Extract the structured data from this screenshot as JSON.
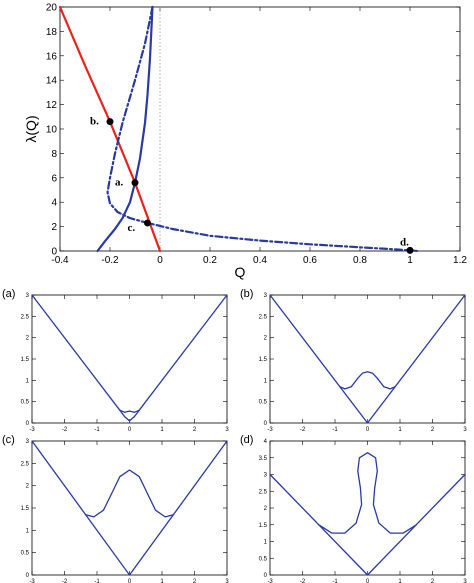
{
  "chart_data": [
    {
      "type": "line",
      "xlabel": "Q",
      "ylabel": "λ(Q)",
      "xlim": [
        -0.4,
        1.2
      ],
      "ylim": [
        0,
        20
      ],
      "xticks": [
        "-0.4",
        "-0.2",
        "0",
        "0.2",
        "0.4",
        "0.6",
        "0.8",
        "1",
        "1.2"
      ],
      "yticks": [
        "0",
        "2",
        "4",
        "6",
        "8",
        "10",
        "12",
        "14",
        "16",
        "18",
        "20"
      ],
      "series": [
        {
          "style": "solid",
          "color": "#e8231e",
          "x": [
            -0.4,
            -0.3,
            -0.2,
            -0.1,
            0.0
          ],
          "y": [
            20.0,
            15.2,
            10.6,
            5.6,
            0.0
          ]
        },
        {
          "style": "solid",
          "color": "#2b3aa0",
          "x": [
            -0.25,
            -0.22,
            -0.18,
            -0.15,
            -0.12,
            -0.1,
            -0.08,
            -0.06,
            -0.05,
            -0.04,
            -0.03
          ],
          "y": [
            0.0,
            0.8,
            1.8,
            2.7,
            4.0,
            5.6,
            7.6,
            10.5,
            12.8,
            15.8,
            20.0
          ]
        },
        {
          "style": "dashdot",
          "color": "#2b3aa0",
          "x": [
            -0.03,
            -0.06,
            -0.1,
            -0.15,
            -0.18,
            -0.2,
            -0.21,
            -0.2,
            -0.17,
            -0.12,
            -0.05,
            0.05,
            0.2,
            0.4,
            0.6,
            0.8,
            0.95,
            1.0,
            1.03
          ],
          "y": [
            20.0,
            17.0,
            14.0,
            10.5,
            8.0,
            6.0,
            4.8,
            3.9,
            3.2,
            2.7,
            2.3,
            1.8,
            1.25,
            0.85,
            0.55,
            0.3,
            0.12,
            0.05,
            0.0
          ]
        }
      ],
      "points": [
        {
          "label": "a.",
          "x": -0.1,
          "y": 5.6
        },
        {
          "label": "b.",
          "x": -0.2,
          "y": 10.6
        },
        {
          "label": "c.",
          "x": -0.05,
          "y": 2.3
        },
        {
          "label": "d.",
          "x": 1.0,
          "y": 0.05
        }
      ]
    },
    {
      "type": "line",
      "panel": "(a)",
      "xlim": [
        -3,
        3
      ],
      "ylim": [
        0,
        3
      ],
      "xticks": [
        "-3",
        "-2",
        "-1",
        "0",
        "1",
        "2",
        "3"
      ],
      "yticks": [
        "0",
        "0.5",
        "1",
        "1.5",
        "2",
        "2.5",
        "3"
      ],
      "series": [
        {
          "color": "#2b3aa0",
          "x": [
            -3,
            -0.45,
            -0.3,
            -0.15,
            0,
            0.15,
            0.3,
            0.45,
            3
          ],
          "y": [
            3,
            0.45,
            0.3,
            0.25,
            0.28,
            0.25,
            0.3,
            0.45,
            3
          ]
        },
        {
          "color": "#2b3aa0",
          "x": [
            -0.3,
            -0.15,
            0,
            0.15,
            0.3
          ],
          "y": [
            0.3,
            0.15,
            0.05,
            0.15,
            0.3
          ]
        }
      ]
    },
    {
      "type": "line",
      "panel": "(b)",
      "xlim": [
        -3,
        3
      ],
      "ylim": [
        0,
        3
      ],
      "xticks": [
        "-3",
        "-2",
        "-1",
        "0",
        "1",
        "2",
        "3"
      ],
      "yticks": [
        "0",
        "0.5",
        "1",
        "1.5",
        "2",
        "2.5",
        "3"
      ],
      "series": [
        {
          "color": "#2b3aa0",
          "x": [
            -3,
            0,
            3
          ],
          "y": [
            3,
            0,
            3
          ]
        },
        {
          "color": "#2b3aa0",
          "x": [
            -0.85,
            -0.7,
            -0.5,
            -0.3,
            -0.15,
            0,
            0.15,
            0.3,
            0.5,
            0.7,
            0.85
          ],
          "y": [
            0.85,
            0.8,
            0.85,
            1.05,
            1.17,
            1.2,
            1.17,
            1.05,
            0.85,
            0.8,
            0.85
          ]
        }
      ]
    },
    {
      "type": "line",
      "panel": "(c)",
      "xlim": [
        -3,
        3
      ],
      "ylim": [
        0,
        3
      ],
      "xticks": [
        "-3",
        "-2",
        "-1",
        "0",
        "1",
        "2",
        "3"
      ],
      "yticks": [
        "0",
        "0.5",
        "1",
        "1.5",
        "2",
        "2.5",
        "3"
      ],
      "series": [
        {
          "color": "#2b3aa0",
          "x": [
            -3,
            0,
            3
          ],
          "y": [
            3,
            0,
            3
          ]
        },
        {
          "color": "#2b3aa0",
          "x": [
            -1.35,
            -1.1,
            -0.8,
            -0.5,
            -0.3,
            0,
            0.3,
            0.5,
            0.8,
            1.1,
            1.35
          ],
          "y": [
            1.35,
            1.3,
            1.45,
            1.9,
            2.2,
            2.35,
            2.2,
            1.9,
            1.45,
            1.3,
            1.35
          ]
        }
      ]
    },
    {
      "type": "line",
      "panel": "(d)",
      "xlim": [
        -3,
        3
      ],
      "ylim": [
        0,
        4
      ],
      "xticks": [
        "-3",
        "-2",
        "-1",
        "0",
        "1",
        "2",
        "3"
      ],
      "yticks": [
        "0",
        "0.5",
        "1",
        "1.5",
        "2",
        "2.5",
        "3",
        "3.5",
        "4"
      ],
      "series": [
        {
          "color": "#2b3aa0",
          "x": [
            -3,
            0,
            3
          ],
          "y": [
            3,
            0,
            3
          ]
        },
        {
          "color": "#2b3aa0",
          "x": [
            -1.5,
            -1.1,
            -0.7,
            -0.35,
            -0.18,
            -0.22,
            -0.3,
            -0.25,
            0,
            0.25,
            0.3,
            0.22,
            0.18,
            0.35,
            0.7,
            1.1,
            1.5
          ],
          "y": [
            1.5,
            1.25,
            1.25,
            1.55,
            2.1,
            2.6,
            3.1,
            3.5,
            3.65,
            3.5,
            3.1,
            2.6,
            2.1,
            1.55,
            1.25,
            1.25,
            1.5
          ]
        }
      ]
    }
  ]
}
